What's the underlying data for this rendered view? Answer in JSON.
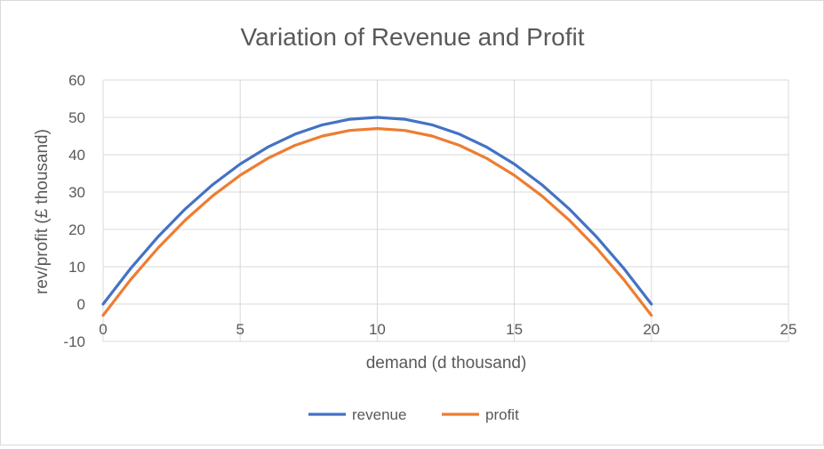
{
  "chart_data": {
    "type": "line",
    "title": "Variation of Revenue and Profit",
    "xlabel": "demand (d thousand)",
    "ylabel": "rev/profit (£ thousand)",
    "xlim": [
      0,
      25
    ],
    "ylim": [
      -10,
      60
    ],
    "xticks": [
      0,
      5,
      10,
      15,
      20,
      25
    ],
    "yticks": [
      -10,
      0,
      10,
      20,
      30,
      40,
      50,
      60
    ],
    "grid": true,
    "legend": "bottom",
    "series": [
      {
        "name": "revenue",
        "color": "#4472c4",
        "x": [
          0,
          1,
          2,
          3,
          4,
          5,
          6,
          7,
          8,
          9,
          10,
          11,
          12,
          13,
          14,
          15,
          16,
          17,
          18,
          19,
          20
        ],
        "y": [
          0,
          9.5,
          18,
          25.5,
          32,
          37.5,
          42,
          45.5,
          48,
          49.5,
          50,
          49.5,
          48,
          45.5,
          42,
          37.5,
          32,
          25.5,
          18,
          9.5,
          0
        ]
      },
      {
        "name": "profit",
        "color": "#ed7d31",
        "x": [
          0,
          1,
          2,
          3,
          4,
          5,
          6,
          7,
          8,
          9,
          10,
          11,
          12,
          13,
          14,
          15,
          16,
          17,
          18,
          19,
          20
        ],
        "y": [
          -3,
          6.5,
          15,
          22.5,
          29,
          34.5,
          39,
          42.5,
          45,
          46.5,
          47,
          46.5,
          45,
          42.5,
          39,
          34.5,
          29,
          22.5,
          15,
          6.5,
          -3
        ]
      }
    ]
  }
}
